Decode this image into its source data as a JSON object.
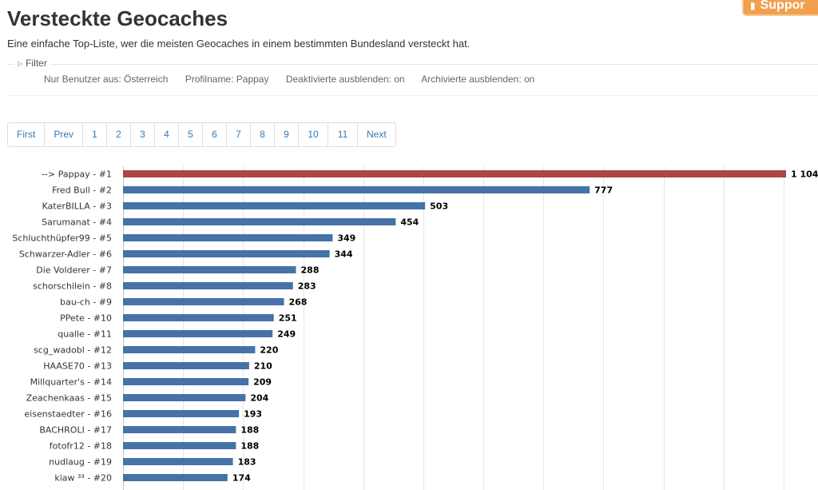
{
  "header": {
    "title": "Versteckte Geocaches",
    "subtitle": "Eine einfache Top-Liste, wer die meisten Geocaches in einem bestimmten Bundesland versteckt hat.",
    "support_label": "Suppor"
  },
  "filter": {
    "label": "Filter",
    "values": [
      "Nur Benutzer aus: Österreich",
      "Profilname: Pappay",
      "Deaktivierte ausblenden: on",
      "Archivierte ausblenden: on"
    ]
  },
  "pagination": {
    "first": "First",
    "prev": "Prev",
    "pages": [
      "1",
      "2",
      "3",
      "4",
      "5",
      "6",
      "7",
      "8",
      "9",
      "10",
      "11"
    ],
    "next": "Next"
  },
  "colors": {
    "highlight_bar": "#aa4643",
    "bar": "#4572a7",
    "link": "#337ab7"
  },
  "chart_data": {
    "type": "bar",
    "orientation": "horizontal",
    "grid": true,
    "xlim": [
      0,
      1100
    ],
    "categories": [
      "--> Pappay - #1",
      "Fred Bull - #2",
      "KaterBILLA - #3",
      "Sarumanat - #4",
      "Schluchthüpfer99 - #5",
      "Schwarzer-Adler - #6",
      "Die Volderer - #7",
      "schorschilein - #8",
      "bau-ch - #9",
      "PPete - #10",
      "qualle - #11",
      "scg_wadobl - #12",
      "HAASE70 - #13",
      "Millquarter's - #14",
      "Zeachenkaas - #15",
      "eisenstaedter - #16",
      "BACHROLI - #17",
      "fotofr12 - #18",
      "nudlaug - #19",
      "kiaw ³³ - #20"
    ],
    "values": [
      1104,
      777,
      503,
      454,
      349,
      344,
      288,
      283,
      268,
      251,
      249,
      220,
      210,
      209,
      204,
      193,
      188,
      188,
      183,
      174
    ],
    "value_labels": [
      "1 104",
      "777",
      "503",
      "454",
      "349",
      "344",
      "288",
      "283",
      "268",
      "251",
      "249",
      "220",
      "210",
      "209",
      "204",
      "193",
      "188",
      "188",
      "183",
      "174"
    ],
    "highlight_index": 0
  }
}
